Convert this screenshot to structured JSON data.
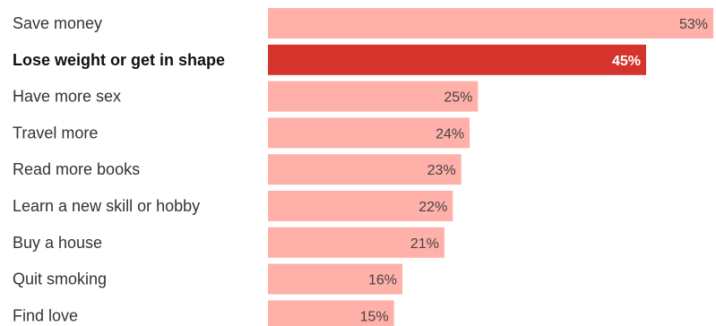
{
  "chart_data": {
    "type": "bar",
    "orientation": "horizontal",
    "categories": [
      "Save money",
      "Lose weight or get in shape",
      "Have more sex",
      "Travel more",
      "Read more books",
      "Learn a new skill or hobby",
      "Buy a house",
      "Quit smoking",
      "Find love"
    ],
    "values": [
      53,
      45,
      25,
      24,
      23,
      22,
      21,
      16,
      15
    ],
    "value_labels": [
      "53%",
      "45%",
      "25%",
      "24%",
      "23%",
      "22%",
      "21%",
      "16%",
      "15%"
    ],
    "highlight_index": 1,
    "title": "",
    "xlabel": "",
    "ylabel": "",
    "xlim": [
      0,
      53
    ],
    "grid": false,
    "colors": {
      "bar": "#ffb0a8",
      "highlight_bar": "#d4342c",
      "label": "#333333",
      "value_label": "#444444",
      "highlight_value_label": "#ffffff"
    }
  }
}
